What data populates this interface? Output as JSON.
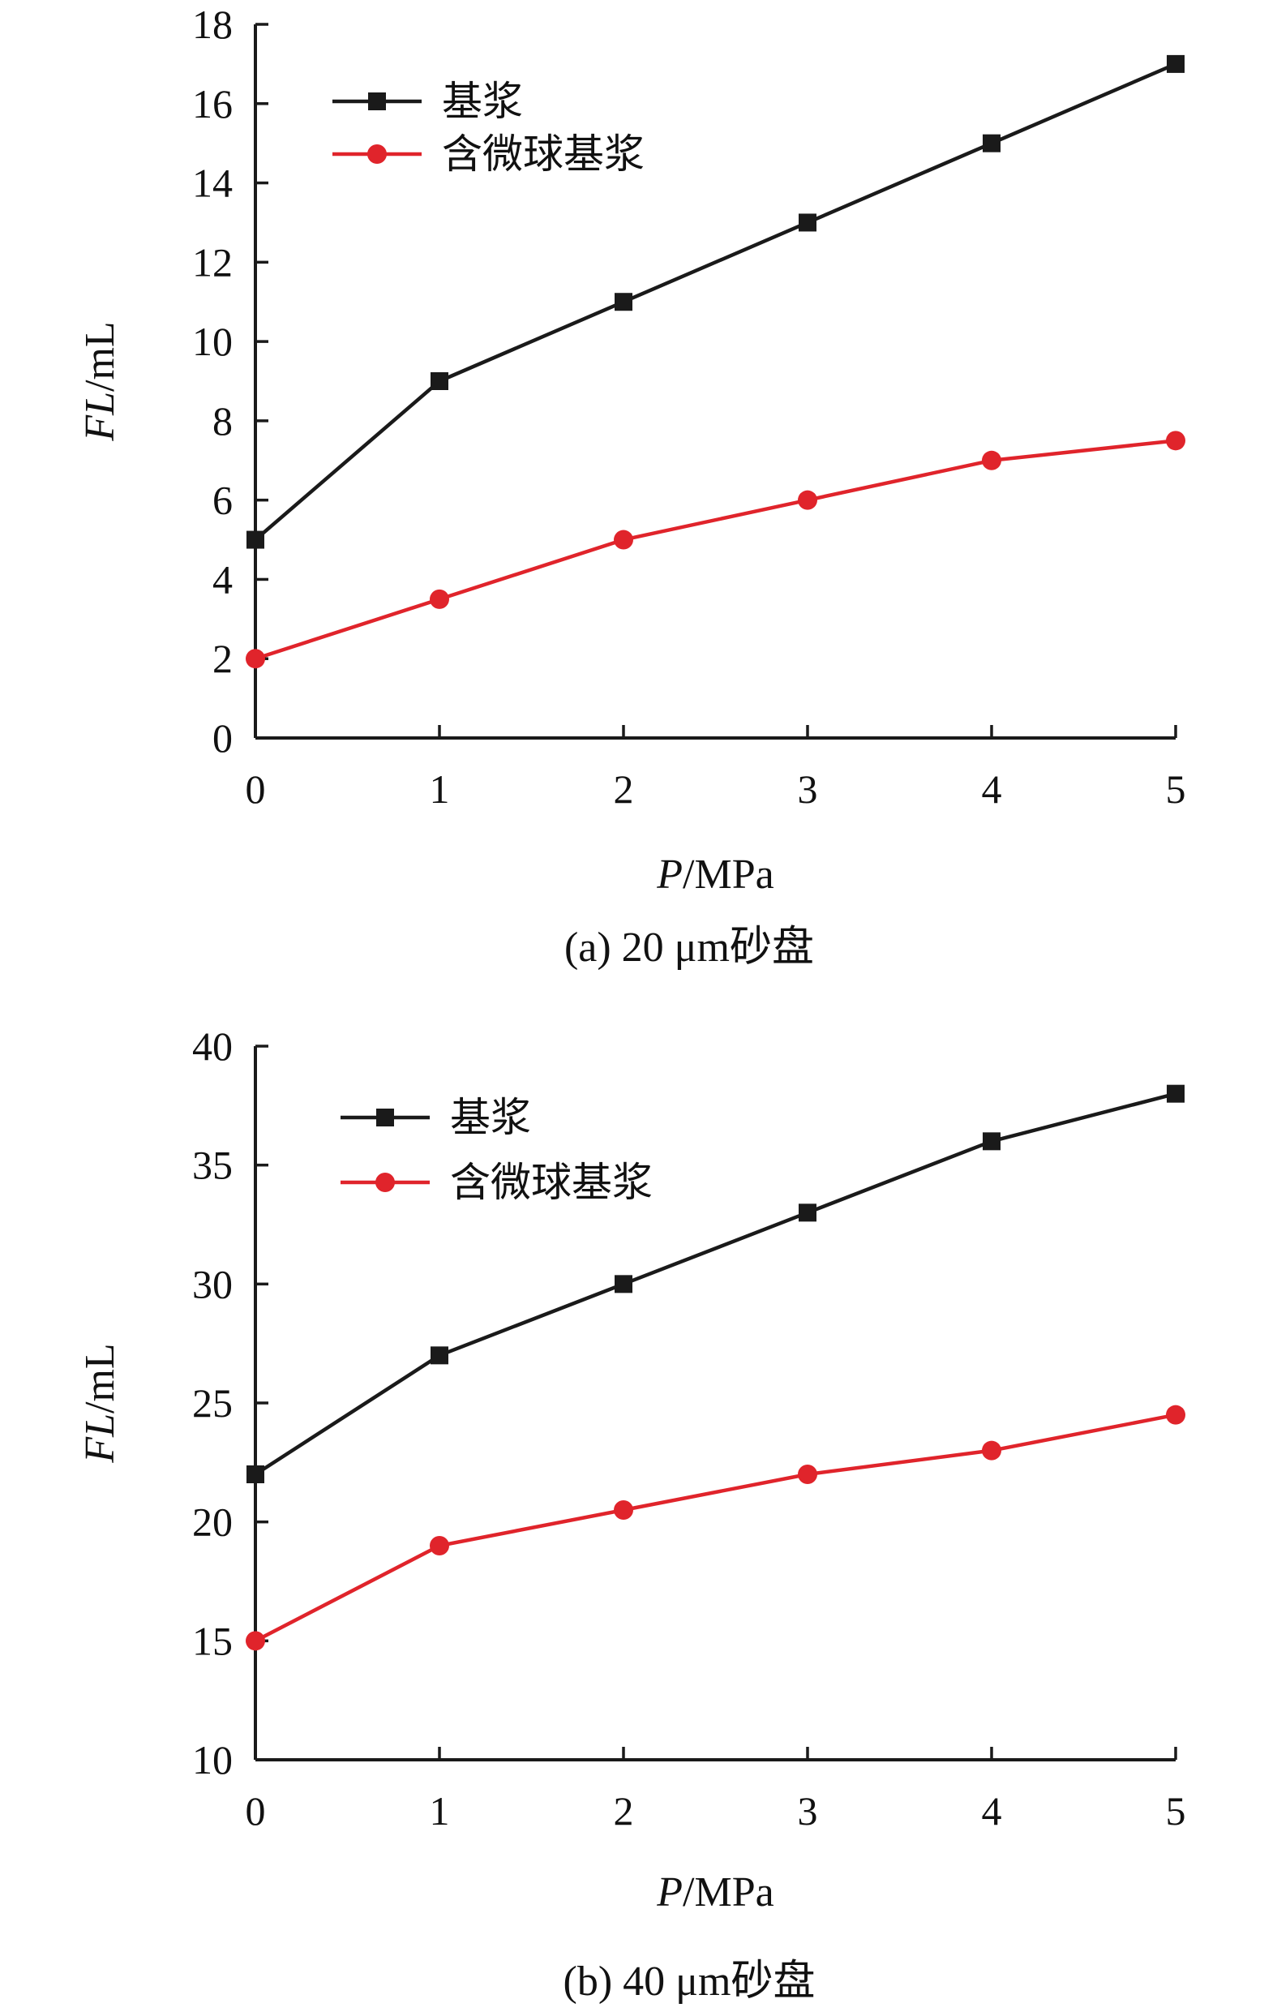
{
  "chart_data": [
    {
      "type": "line",
      "caption": "(a) 20 μm砂盘",
      "xlabel": {
        "italic": "P",
        "unit": "/MPa"
      },
      "ylabel": {
        "italic": "FL",
        "unit": "/mL"
      },
      "xlim": [
        0,
        5
      ],
      "ylim": [
        0,
        18
      ],
      "x": [
        0,
        1,
        2,
        3,
        4,
        5
      ],
      "xticks": [
        0,
        1,
        2,
        3,
        4,
        5
      ],
      "yticks": [
        0,
        2,
        4,
        6,
        8,
        10,
        12,
        14,
        16,
        18
      ],
      "legend_position": "top-left",
      "grid": false,
      "series": [
        {
          "name": "基浆",
          "color": "#1a1a1a",
          "marker": "square",
          "values": [
            5,
            9,
            11,
            13,
            15,
            17
          ]
        },
        {
          "name": "含微球基浆",
          "color": "#e0242b",
          "marker": "circle",
          "values": [
            2,
            3.5,
            5,
            6,
            7,
            7.5
          ]
        }
      ]
    },
    {
      "type": "line",
      "caption": "(b) 40 μm砂盘",
      "xlabel": {
        "italic": "P",
        "unit": "/MPa"
      },
      "ylabel": {
        "italic": "FL",
        "unit": "/mL"
      },
      "xlim": [
        0,
        5
      ],
      "ylim": [
        10,
        40
      ],
      "x": [
        0,
        1,
        2,
        3,
        4,
        5
      ],
      "xticks": [
        0,
        1,
        2,
        3,
        4,
        5
      ],
      "yticks": [
        10,
        15,
        20,
        25,
        30,
        35,
        40
      ],
      "legend_position": "top-left",
      "grid": false,
      "series": [
        {
          "name": "基浆",
          "color": "#1a1a1a",
          "marker": "square",
          "values": [
            22,
            27,
            30,
            33,
            36,
            38
          ]
        },
        {
          "name": "含微球基浆",
          "color": "#e0242b",
          "marker": "circle",
          "values": [
            15,
            19,
            20.5,
            22,
            23,
            24.5
          ]
        }
      ]
    }
  ]
}
